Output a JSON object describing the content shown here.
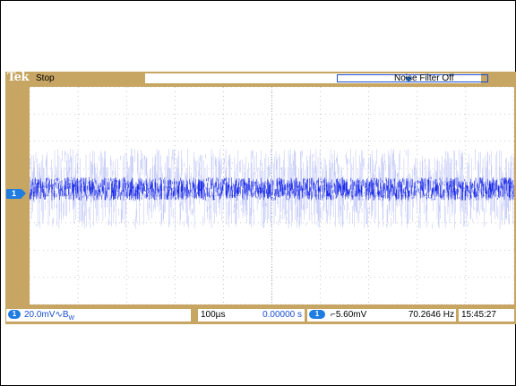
{
  "header": {
    "brand": "Tek",
    "status": "Stop",
    "noise_filter": "Noise Filter Off"
  },
  "channel": {
    "number": "1"
  },
  "bottom": {
    "ch1_scale": "20.0mV",
    "coupling_symbol": "∿",
    "bw_symbol": "B",
    "bw_sub": "W",
    "timebase": "100µs",
    "delay": "0.00000 s",
    "trigger_channel": "1",
    "trigger_level": "5.60mV",
    "trigger_edge_symbol": "⌐",
    "frequency": "70.2646 Hz",
    "time": "15:45:27"
  },
  "colors": {
    "bezel": "#c7a563",
    "trace": "#1e2ee8",
    "accent": "#1f7ce0",
    "grid": "#a0a0a0"
  }
}
